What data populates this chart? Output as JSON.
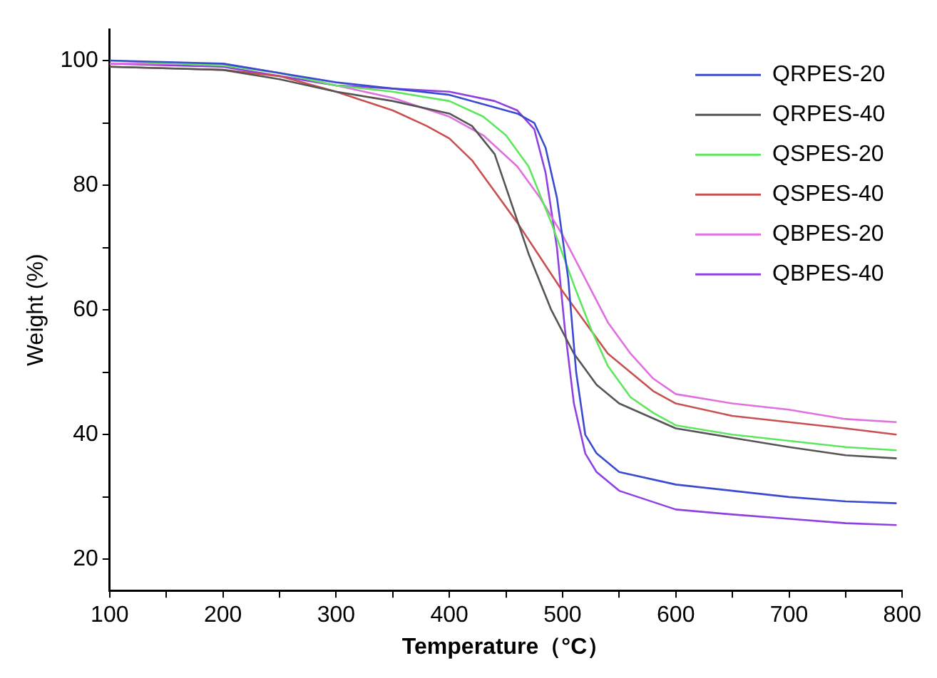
{
  "chart_data": {
    "type": "line",
    "xlabel": "Temperature（°C）",
    "ylabel": "Weight (%)",
    "xlim": [
      100,
      800
    ],
    "ylim": [
      15,
      105
    ],
    "xticks": [
      100,
      {
        "value": 150,
        "label": null
      },
      200,
      {
        "value": 250,
        "label": null
      },
      300,
      {
        "value": 350,
        "label": null
      },
      400,
      {
        "value": 450,
        "label": null
      },
      500,
      {
        "value": 550,
        "label": null
      },
      600,
      {
        "value": 650,
        "label": null
      },
      700,
      {
        "value": 750,
        "label": null
      },
      800
    ],
    "yticks": [
      20,
      {
        "value": 30,
        "label": null
      },
      40,
      {
        "value": 50,
        "label": null
      },
      60,
      {
        "value": 70,
        "label": null
      },
      80,
      {
        "value": 90,
        "label": null
      },
      100
    ],
    "grid": false,
    "legend": "top right",
    "marker": "none",
    "line_style": "solid",
    "series": [
      {
        "name": "QRPES-20",
        "color": "#3b4bd0",
        "x": [
          100,
          200,
          250,
          300,
          350,
          400,
          440,
          460,
          475,
          485,
          495,
          505,
          512,
          520,
          530,
          550,
          600,
          650,
          700,
          750,
          795
        ],
        "values": [
          100,
          99.5,
          98,
          96.5,
          95.5,
          94.5,
          92.5,
          91.5,
          90,
          86,
          78,
          65,
          50,
          40,
          37,
          34,
          32,
          31,
          30,
          29.3,
          29
        ]
      },
      {
        "name": "QRPES-40",
        "color": "#555555",
        "x": [
          100,
          200,
          250,
          300,
          350,
          400,
          420,
          440,
          455,
          470,
          490,
          510,
          530,
          550,
          575,
          600,
          650,
          700,
          750,
          795
        ],
        "values": [
          99,
          98.5,
          97,
          95,
          93.5,
          91.5,
          89.5,
          85,
          77,
          69,
          60,
          53,
          48,
          45,
          43,
          41,
          39.5,
          38,
          36.7,
          36.2
        ]
      },
      {
        "name": "QSPES-20",
        "color": "#5ee65e",
        "x": [
          100,
          200,
          250,
          300,
          350,
          400,
          430,
          450,
          470,
          490,
          510,
          525,
          540,
          560,
          580,
          600,
          650,
          700,
          750,
          795
        ],
        "values": [
          100,
          99.2,
          98,
          96,
          95,
          93.5,
          91,
          88,
          83,
          74,
          64,
          57,
          51,
          46,
          43.5,
          41.5,
          40,
          39,
          38,
          37.5
        ]
      },
      {
        "name": "QSPES-40",
        "color": "#c85050",
        "x": [
          100,
          200,
          250,
          300,
          350,
          380,
          400,
          420,
          440,
          460,
          480,
          500,
          520,
          540,
          560,
          580,
          600,
          650,
          700,
          750,
          795
        ],
        "values": [
          99,
          98.5,
          97.5,
          95,
          92,
          89.5,
          87.5,
          84,
          79,
          74,
          68.5,
          63,
          58,
          53,
          50,
          47,
          45,
          43,
          42,
          41,
          40
        ]
      },
      {
        "name": "QBPES-20",
        "color": "#e070e0",
        "x": [
          100,
          200,
          250,
          300,
          350,
          400,
          430,
          460,
          480,
          500,
          520,
          540,
          560,
          580,
          600,
          650,
          700,
          750,
          795
        ],
        "values": [
          99.5,
          99.5,
          98,
          96,
          94,
          91,
          88,
          83,
          78,
          72,
          65,
          58,
          53,
          49,
          46.5,
          45,
          44,
          42.5,
          42
        ]
      },
      {
        "name": "QBPES-40",
        "color": "#9040e0",
        "x": [
          100,
          200,
          250,
          300,
          350,
          400,
          440,
          460,
          475,
          485,
          495,
          502,
          510,
          520,
          530,
          550,
          600,
          650,
          700,
          750,
          795
        ],
        "values": [
          99.5,
          99,
          97.5,
          96,
          95.5,
          95,
          93.5,
          92,
          89,
          82,
          70,
          57,
          45,
          37,
          34,
          31,
          28,
          27.2,
          26.5,
          25.8,
          25.5
        ]
      }
    ]
  }
}
